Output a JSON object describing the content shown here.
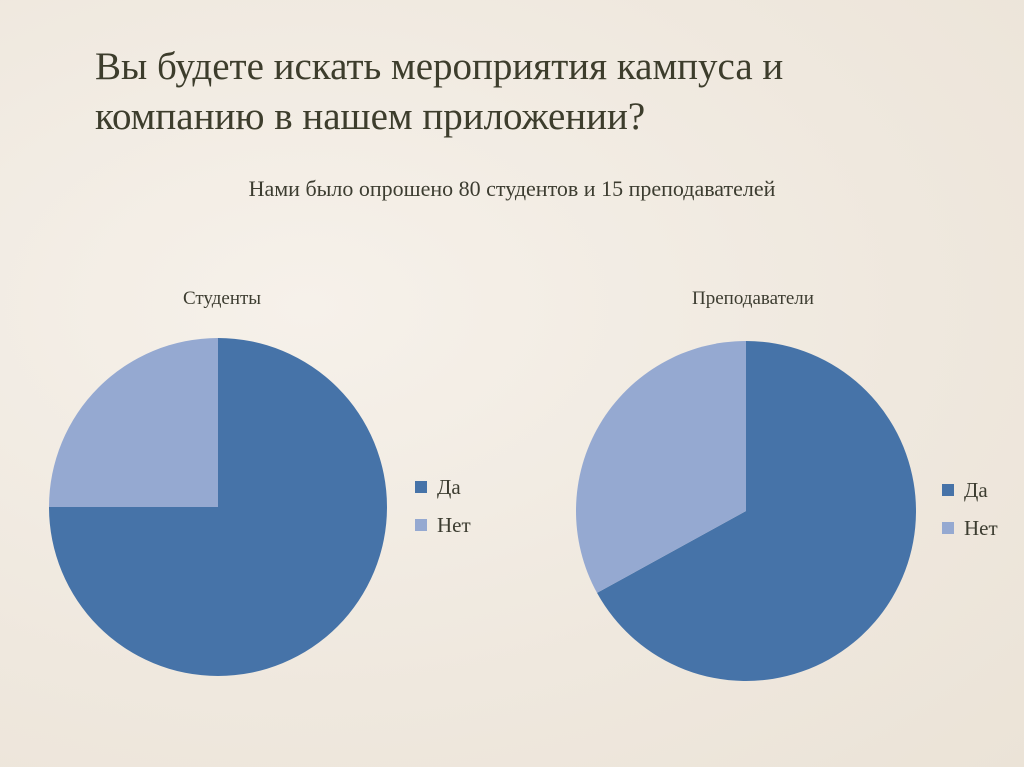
{
  "title": {
    "line1": "Вы будете искать мероприятия кампуса и",
    "line2": "компанию в нашем приложении?"
  },
  "subtitle": "Нами было опрошено 80 студентов и 15 преподавателей",
  "colors": {
    "yes": "#4673a8",
    "no": "#95a9d1"
  },
  "chart_data": [
    {
      "type": "pie",
      "title": "Студенты",
      "categories": [
        "Да",
        "Нет"
      ],
      "values": [
        75,
        25
      ],
      "legend": "right"
    },
    {
      "type": "pie",
      "title": "Преподаватели",
      "categories": [
        "Да",
        "Нет"
      ],
      "values": [
        67,
        33
      ],
      "legend": "right"
    }
  ]
}
